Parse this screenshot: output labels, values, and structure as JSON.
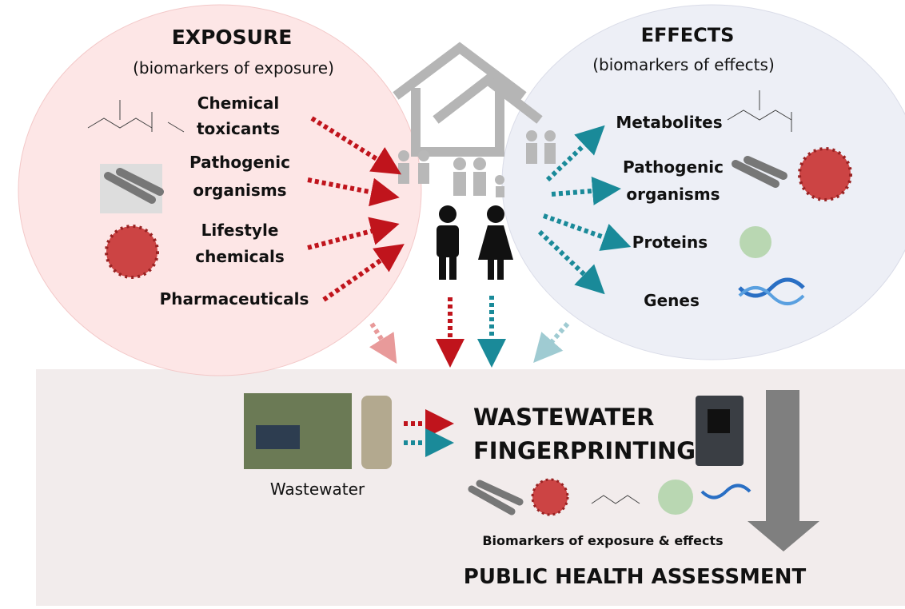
{
  "exposure": {
    "title": "EXPOSURE",
    "subtitle": "(biomarkers of exposure)",
    "items": [
      [
        "Chemical",
        "toxicants"
      ],
      [
        "Pathogenic",
        "organisms"
      ],
      [
        "Lifestyle",
        "chemicals"
      ],
      [
        "Pharmaceuticals"
      ]
    ]
  },
  "effects": {
    "title": "EFFECTS",
    "subtitle": "(biomarkers of effects)",
    "items": [
      [
        "Metabolites"
      ],
      [
        "Pathogenic",
        "organisms"
      ],
      [
        "Proteins"
      ],
      [
        "Genes"
      ]
    ]
  },
  "wastewater": {
    "label": "Wastewater"
  },
  "fingerprinting": {
    "title": [
      "WASTEWATER",
      "FINGERPRINTING"
    ],
    "biomarkers": "Biomarkers of exposure & effects"
  },
  "assessment": "PUBLIC HEALTH ASSESSMENT"
}
